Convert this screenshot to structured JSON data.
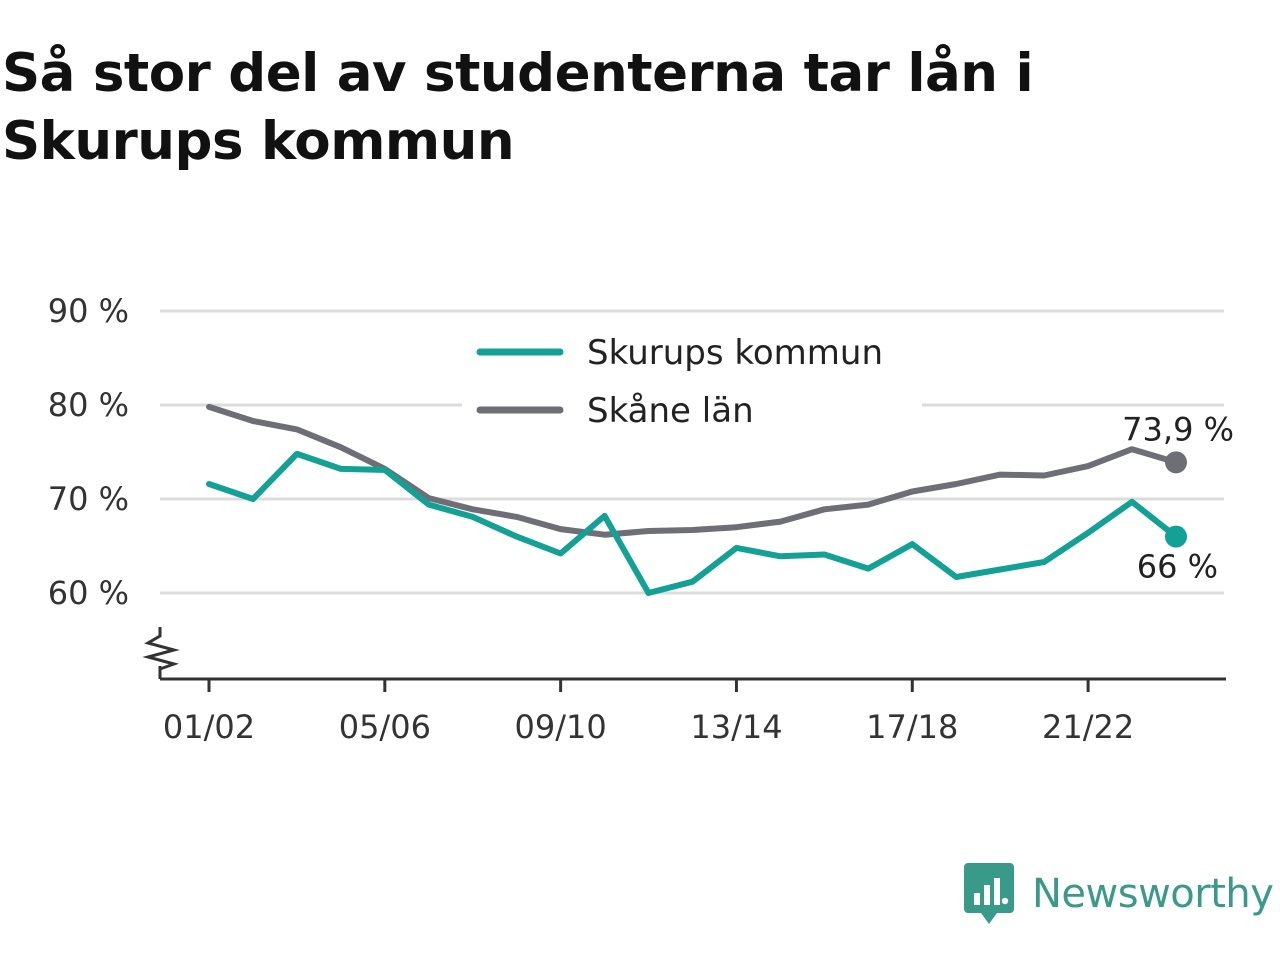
{
  "title": "Så stor del av studenterna tar lån i Skurups kommun",
  "brand": {
    "name": "Newsworthy",
    "icon": "newsworthy-logo-icon",
    "color": "#3a9a8a"
  },
  "chart_data": {
    "type": "line",
    "title": "Så stor del av studenterna tar lån i Skurups kommun",
    "xlabel": "",
    "ylabel": "",
    "ylim": [
      50.5,
      90
    ],
    "yticks": [
      60,
      70,
      80,
      90
    ],
    "ytick_labels": [
      "60 %",
      "70 %",
      "80 %",
      "90 %"
    ],
    "axis_break": true,
    "grid": true,
    "legend_position": "top-center",
    "categories": [
      "01/02",
      "02/03",
      "03/04",
      "04/05",
      "05/06",
      "06/07",
      "07/08",
      "08/09",
      "09/10",
      "10/11",
      "11/12",
      "12/13",
      "13/14",
      "14/15",
      "15/16",
      "16/17",
      "17/18",
      "18/19",
      "19/20",
      "20/21",
      "21/22",
      "22/23",
      "23/24"
    ],
    "xtick_labels": [
      "01/02",
      "05/06",
      "09/10",
      "13/14",
      "17/18",
      "21/22"
    ],
    "series": [
      {
        "name": "Skurups kommun",
        "color": "#13a196",
        "end_label": "66 %",
        "values": [
          71.6,
          70.0,
          74.8,
          73.2,
          73.1,
          69.4,
          68.1,
          66.0,
          64.2,
          68.2,
          60.0,
          61.2,
          64.8,
          63.9,
          64.1,
          62.6,
          65.2,
          61.7,
          62.5,
          63.3,
          66.4,
          69.7,
          66.0
        ]
      },
      {
        "name": "Skåne län",
        "color": "#6e6e76",
        "end_label": "73,9 %",
        "values": [
          79.8,
          78.3,
          77.4,
          75.5,
          73.2,
          70.1,
          68.9,
          68.1,
          66.8,
          66.2,
          66.6,
          66.7,
          67.0,
          67.6,
          68.9,
          69.4,
          70.8,
          71.6,
          72.6,
          72.5,
          73.5,
          75.3,
          73.9
        ]
      }
    ]
  }
}
